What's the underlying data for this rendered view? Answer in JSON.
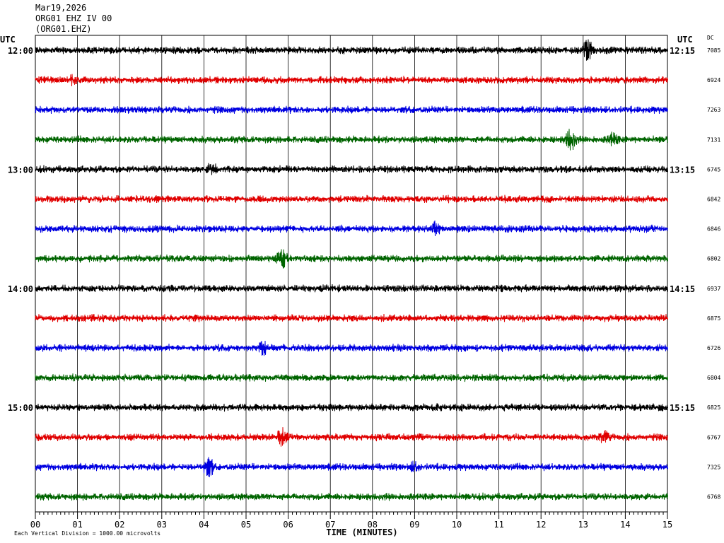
{
  "header": {
    "date": "Mar19,2026",
    "channel": "ORG01 EHZ IV 00",
    "station": "(ORG01.EHZ)"
  },
  "axis": {
    "left_utc": "UTC",
    "right_utc": "UTC",
    "dc_label": "DC",
    "xlabel": "TIME (MINUTES)",
    "scale_note": "Each Vertical Division = 1000.00 microvolts"
  },
  "colors": {
    "trace_cycle": [
      "#000000",
      "#e00000",
      "#0000e0",
      "#006400"
    ],
    "grid": "#000000"
  },
  "chart_data": {
    "type": "line",
    "title": "",
    "xlabel": "TIME (MINUTES)",
    "ylabel": "",
    "x_ticks": [
      "00",
      "01",
      "02",
      "03",
      "04",
      "05",
      "06",
      "07",
      "08",
      "09",
      "10",
      "11",
      "12",
      "13",
      "14",
      "15"
    ],
    "xlim": [
      0,
      15
    ],
    "grid": true,
    "row_count": 16,
    "left_time_labels": [
      {
        "row": 0,
        "label": "12:00"
      },
      {
        "row": 4,
        "label": "13:00"
      },
      {
        "row": 8,
        "label": "14:00"
      },
      {
        "row": 12,
        "label": "15:00"
      }
    ],
    "right_time_labels": [
      {
        "row": 0,
        "label": "12:15"
      },
      {
        "row": 4,
        "label": "13:15"
      },
      {
        "row": 8,
        "label": "14:15"
      },
      {
        "row": 12,
        "label": "15:15"
      }
    ],
    "dc_values": [
      "7085",
      "6924",
      "7263",
      "7131",
      "6745",
      "6842",
      "6846",
      "6802",
      "6937",
      "6875",
      "6726",
      "6804",
      "6825",
      "6767",
      "7325",
      "6768"
    ],
    "series_spikes": [
      {
        "row": 0,
        "minute": 13.1,
        "amp": 1.0
      },
      {
        "row": 1,
        "minute": 0.9,
        "amp": 0.45
      },
      {
        "row": 3,
        "minute": 12.7,
        "amp": 1.0
      },
      {
        "row": 3,
        "minute": 13.7,
        "amp": 0.6
      },
      {
        "row": 4,
        "minute": 4.2,
        "amp": 0.5
      },
      {
        "row": 6,
        "minute": 9.5,
        "amp": 0.6
      },
      {
        "row": 7,
        "minute": 5.85,
        "amp": 1.0
      },
      {
        "row": 10,
        "minute": 5.4,
        "amp": 0.8
      },
      {
        "row": 13,
        "minute": 5.85,
        "amp": 0.9
      },
      {
        "row": 13,
        "minute": 13.5,
        "amp": 0.5
      },
      {
        "row": 14,
        "minute": 4.1,
        "amp": 1.0
      },
      {
        "row": 14,
        "minute": 9.0,
        "amp": 0.4
      }
    ]
  }
}
